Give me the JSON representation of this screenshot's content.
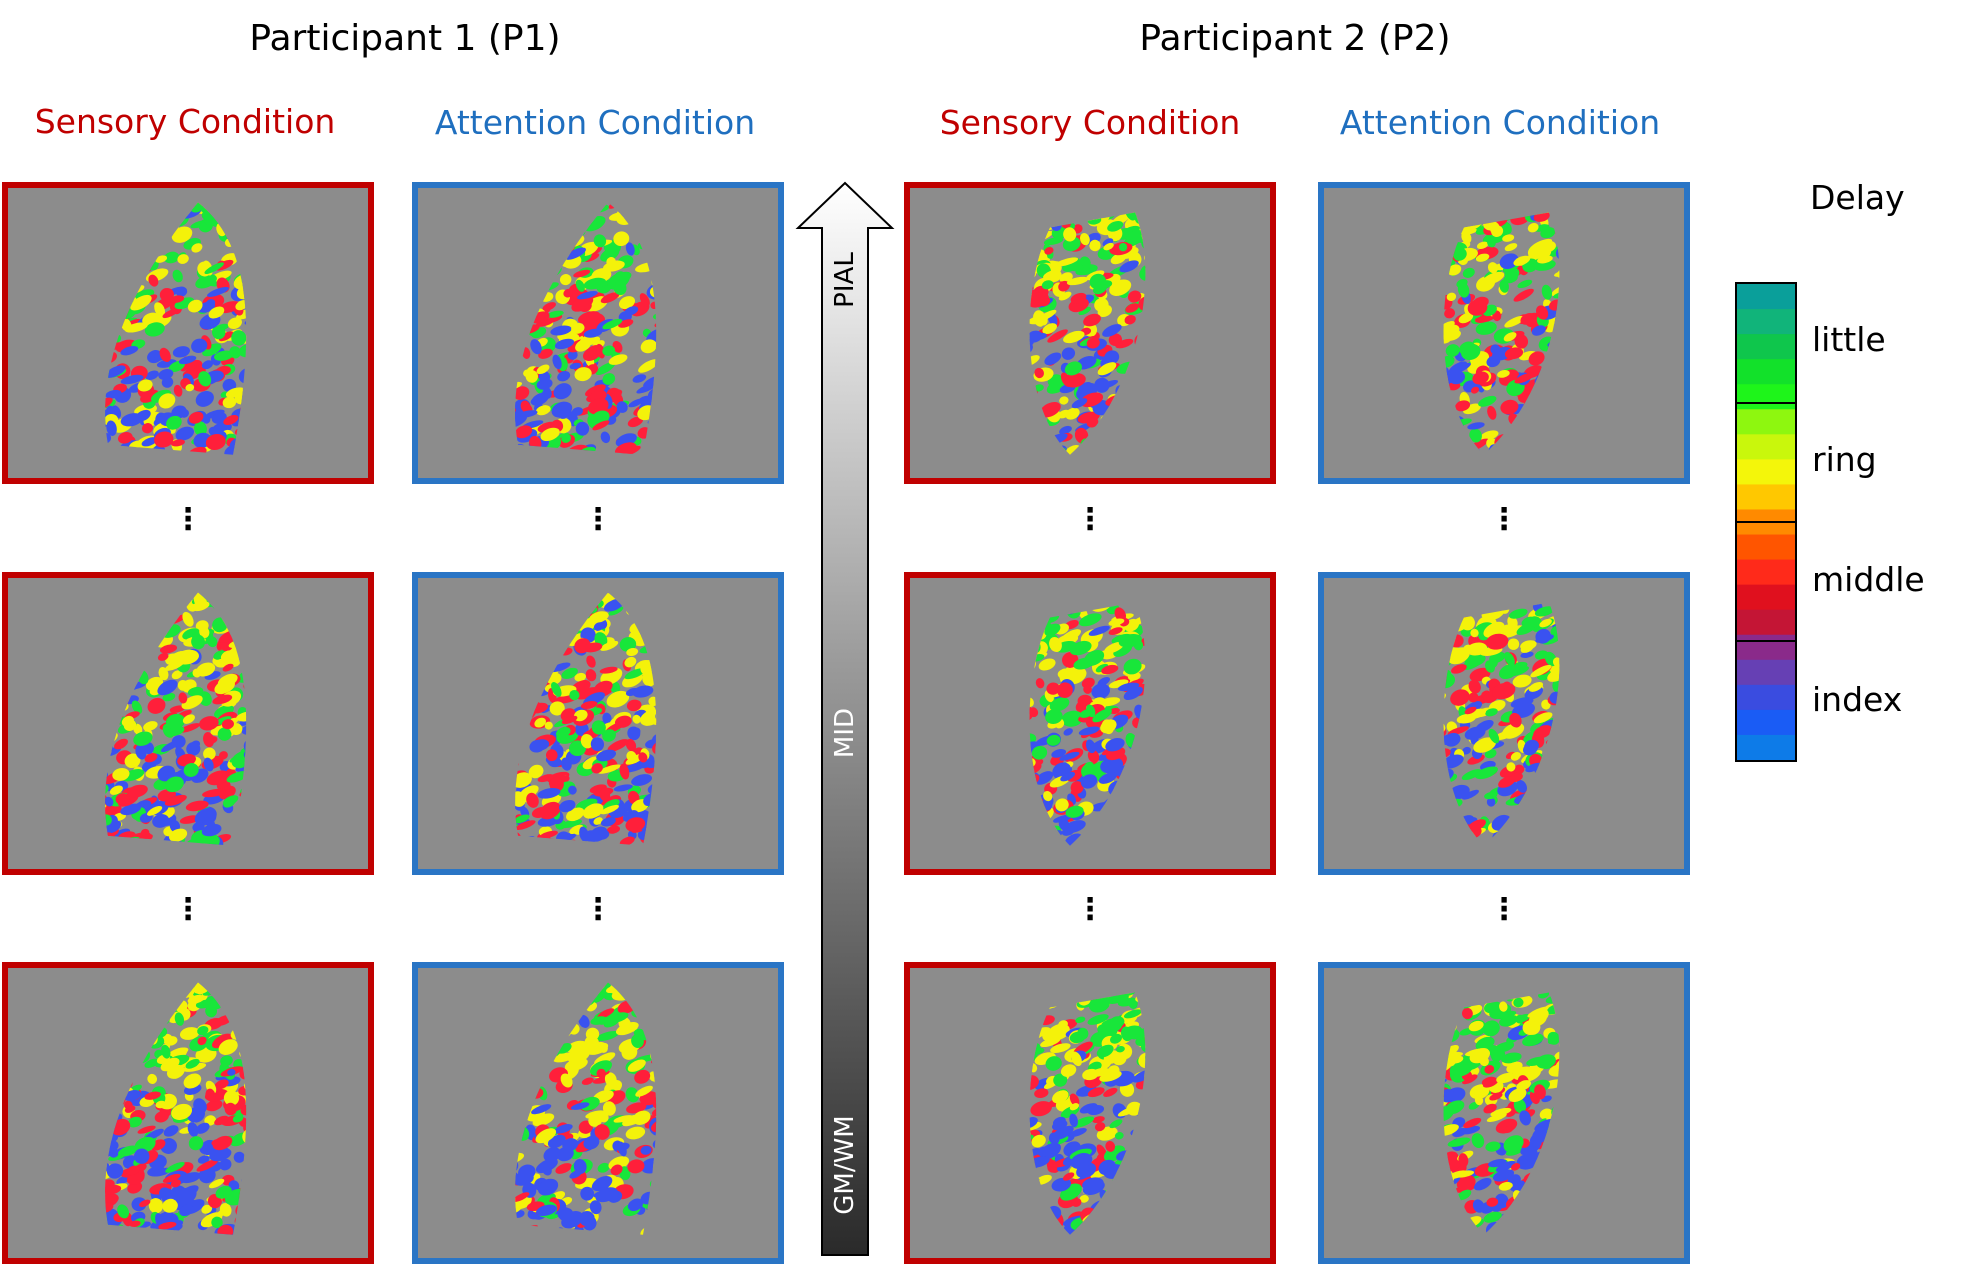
{
  "participants": [
    {
      "title": "Participant 1 (P1)",
      "sensory_label": "Sensory Condition",
      "attention_label": "Attention Condition"
    },
    {
      "title": "Participant 2 (P2)",
      "sensory_label": "Sensory Condition",
      "attention_label": "Attention Condition"
    }
  ],
  "row_separator": "⋮",
  "depth_axis": {
    "top": "PIAL",
    "middle": "MID",
    "bottom": "GM/WM"
  },
  "legend": {
    "title": "Delay",
    "labels": [
      "little",
      "ring",
      "middle",
      "index"
    ],
    "colors": [
      "#0a9f9a",
      "#11b47a",
      "#0fc64c",
      "#12e12a",
      "#1ef51a",
      "#8ef70f",
      "#c9f70c",
      "#f4f60a",
      "#ffc800",
      "#ff8a00",
      "#ff5500",
      "#ff2a1a",
      "#e0101e",
      "#c41535",
      "#8a2a8a",
      "#6640b4",
      "#3a4ce0",
      "#1a5cf5",
      "#0d7be8"
    ]
  },
  "colors": {
    "sensory": "#c00000",
    "attention": "#1f6fbf",
    "panel_background": "#8c8c8c",
    "finger_index": "#3a52f0",
    "finger_middle": "#ff1f3a",
    "finger_ring": "#f4f20a",
    "finger_little": "#18e63a"
  }
}
